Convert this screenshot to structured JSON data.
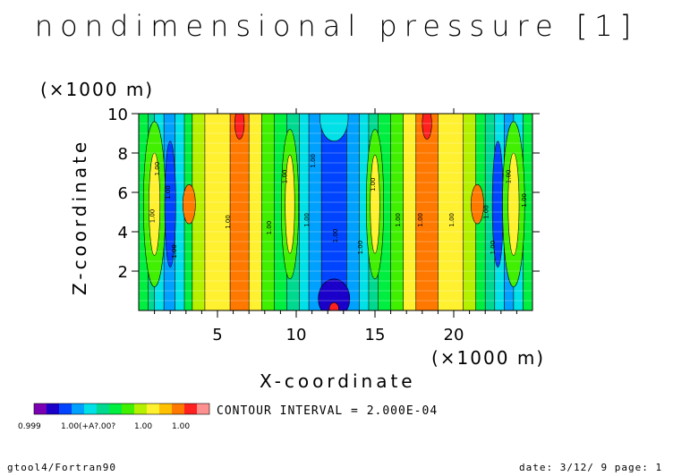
{
  "title": "nondimensional pressure [1]",
  "contour_interval": "CONTOUR INTERVAL = 2.000E-04",
  "footer": {
    "left": "gtool4/Fortran90",
    "right": "date: 3/12/ 9 page: 1"
  },
  "colorbar": {
    "colors": [
      "#7a00b4",
      "#1a00c8",
      "#0044ff",
      "#00a0ff",
      "#00e0e6",
      "#00d890",
      "#00ee40",
      "#40f000",
      "#b4f000",
      "#fff030",
      "#ffc000",
      "#ff7800",
      "#ff2020",
      "#ff9090"
    ],
    "labels": [
      "0.999",
      "1.00(+A?.00?",
      "1.00",
      "1.00"
    ]
  },
  "chart_data": {
    "type": "heatmap",
    "title": "nondimensional pressure [1]",
    "xlabel": "X-coordinate",
    "ylabel": "Z-coordinate",
    "x_unit_label": "(×1000 m)",
    "y_unit_label": "(×1000 m)",
    "xlim": [
      0,
      25
    ],
    "ylim": [
      0,
      10
    ],
    "x_ticks": [
      5,
      10,
      15,
      20
    ],
    "y_ticks": [
      2,
      4,
      6,
      8,
      10
    ],
    "contour_interval": 0.0002,
    "contour_labels": [
      "1.00"
    ],
    "columns": [
      {
        "x": [
          0.0,
          0.6
        ],
        "level": 6
      },
      {
        "x": [
          0.6,
          1.0
        ],
        "level": 5
      },
      {
        "x": [
          1.0,
          1.6
        ],
        "level": 4
      },
      {
        "x": [
          1.6,
          2.3
        ],
        "level": 3
      },
      {
        "x": [
          2.3,
          2.9
        ],
        "level": 4
      },
      {
        "x": [
          2.9,
          3.4
        ],
        "level": 6
      },
      {
        "x": [
          3.4,
          4.2
        ],
        "level": 8
      },
      {
        "x": [
          4.2,
          5.8
        ],
        "level": 9
      },
      {
        "x": [
          5.8,
          7.0
        ],
        "level": 11
      },
      {
        "x": [
          7.0,
          7.8
        ],
        "level": 9
      },
      {
        "x": [
          7.8,
          8.6
        ],
        "level": 7
      },
      {
        "x": [
          8.6,
          9.4
        ],
        "level": 6
      },
      {
        "x": [
          9.4,
          10.2
        ],
        "level": 5
      },
      {
        "x": [
          10.2,
          10.8
        ],
        "level": 4
      },
      {
        "x": [
          10.8,
          11.6
        ],
        "level": 3
      },
      {
        "x": [
          11.6,
          13.2
        ],
        "level": 2
      },
      {
        "x": [
          13.2,
          14.0
        ],
        "level": 3
      },
      {
        "x": [
          14.0,
          14.6
        ],
        "level": 4
      },
      {
        "x": [
          14.6,
          15.2
        ],
        "level": 5
      },
      {
        "x": [
          15.2,
          16.0
        ],
        "level": 6
      },
      {
        "x": [
          16.0,
          16.8
        ],
        "level": 7
      },
      {
        "x": [
          16.8,
          17.6
        ],
        "level": 9
      },
      {
        "x": [
          17.6,
          19.0
        ],
        "level": 11
      },
      {
        "x": [
          19.0,
          20.6
        ],
        "level": 9
      },
      {
        "x": [
          20.6,
          21.4
        ],
        "level": 8
      },
      {
        "x": [
          21.4,
          22.0
        ],
        "level": 6
      },
      {
        "x": [
          22.0,
          22.6
        ],
        "level": 5
      },
      {
        "x": [
          22.6,
          23.2
        ],
        "level": 4
      },
      {
        "x": [
          23.2,
          23.8
        ],
        "level": 3
      },
      {
        "x": [
          23.8,
          24.4
        ],
        "level": 4
      },
      {
        "x": [
          24.4,
          25.0
        ],
        "level": 6
      }
    ],
    "blobs": [
      {
        "cx": 1.0,
        "cy": 5.4,
        "rx": 0.7,
        "ry": 4.2,
        "level": 7
      },
      {
        "cx": 1.0,
        "cy": 5.4,
        "rx": 0.35,
        "ry": 2.6,
        "level": 9
      },
      {
        "cx": 2.0,
        "cy": 5.4,
        "rx": 0.35,
        "ry": 3.2,
        "level": 2
      },
      {
        "cx": 3.2,
        "cy": 5.4,
        "rx": 0.4,
        "ry": 1.0,
        "level": 11
      },
      {
        "cx": 6.4,
        "cy": 9.5,
        "rx": 0.3,
        "ry": 0.8,
        "level": 12
      },
      {
        "cx": 9.6,
        "cy": 5.4,
        "rx": 0.55,
        "ry": 3.8,
        "level": 7
      },
      {
        "cx": 9.6,
        "cy": 5.4,
        "rx": 0.3,
        "ry": 2.5,
        "level": 9
      },
      {
        "cx": 12.4,
        "cy": 0.6,
        "rx": 1.0,
        "ry": 1.0,
        "level": 1
      },
      {
        "cx": 12.4,
        "cy": 0.1,
        "rx": 0.3,
        "ry": 0.3,
        "level": 12
      },
      {
        "cx": 12.4,
        "cy": 9.8,
        "rx": 0.9,
        "ry": 1.2,
        "level": 4
      },
      {
        "cx": 15.0,
        "cy": 5.4,
        "rx": 0.55,
        "ry": 3.8,
        "level": 7
      },
      {
        "cx": 15.0,
        "cy": 5.4,
        "rx": 0.3,
        "ry": 2.5,
        "level": 9
      },
      {
        "cx": 18.3,
        "cy": 9.5,
        "rx": 0.3,
        "ry": 0.8,
        "level": 12
      },
      {
        "cx": 21.5,
        "cy": 5.4,
        "rx": 0.4,
        "ry": 1.0,
        "level": 11
      },
      {
        "cx": 22.8,
        "cy": 5.4,
        "rx": 0.35,
        "ry": 3.2,
        "level": 2
      },
      {
        "cx": 23.8,
        "cy": 5.4,
        "rx": 0.7,
        "ry": 4.2,
        "level": 7
      },
      {
        "cx": 23.8,
        "cy": 5.4,
        "rx": 0.35,
        "ry": 2.6,
        "level": 9
      }
    ]
  }
}
